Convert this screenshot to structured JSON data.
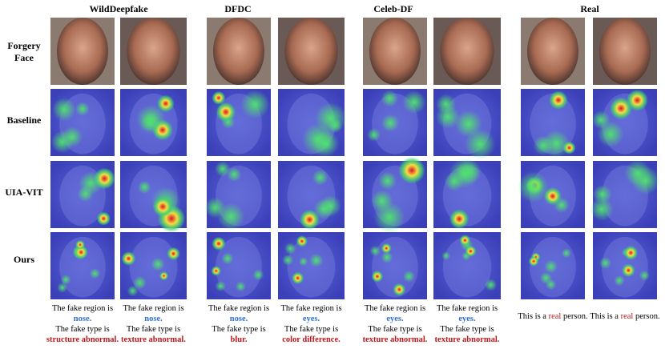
{
  "column_groups": [
    "WildDeepfake",
    "DFDC",
    "Celeb-DF",
    "Real"
  ],
  "row_labels": [
    "Forgery Face",
    "Baseline",
    "UIA-VIT",
    "Ours"
  ],
  "fake_captions": [
    {
      "region_prefix": "The fake region is",
      "region": "nose.",
      "type_prefix": "The fake type is",
      "type": "structure abnormal."
    },
    {
      "region_prefix": "The fake region is",
      "region": "nose.",
      "type_prefix": "The fake type is",
      "type": "texture abnormal."
    },
    {
      "region_prefix": "The fake region is",
      "region": "nose.",
      "type_prefix": "The fake type is",
      "type": "blur."
    },
    {
      "region_prefix": "The fake region is",
      "region": "eyes.",
      "type_prefix": "The fake type is",
      "type": "color difference."
    },
    {
      "region_prefix": "The fake region is",
      "region": "eyes.",
      "type_prefix": "The fake type is",
      "type": "texture abnormal."
    },
    {
      "region_prefix": "The fake region is",
      "region": "eyes.",
      "type_prefix": "The fake type is",
      "type": "texture abnormal."
    }
  ],
  "real_captions": [
    {
      "prefix": "This is a",
      "highlight": "real",
      "suffix": "person."
    },
    {
      "prefix": "This is a",
      "highlight": "real",
      "suffix": "person."
    }
  ]
}
